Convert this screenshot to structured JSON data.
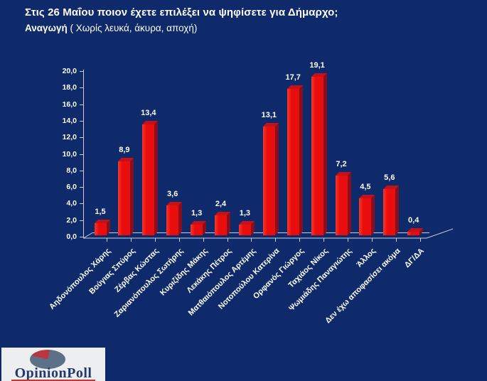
{
  "header": {
    "title": "Στις 26 Μαΐου ποιον έχετε επιλέξει να ψηφίσετε για Δήμαρχο;",
    "subtitle_bold": "Αναγωγή",
    "subtitle_note": " ( Χωρίς λευκά, άκυρα, αποχή)"
  },
  "chart_data": {
    "type": "bar",
    "categories": [
      "Αηδονόπουλος Χάρης",
      "Βούγιας Σπύρος",
      "Ζέρβας Κώστας",
      "Ζαριανόπουλος Σωτήρης",
      "Κυριζίδης Μάκης",
      "Λεκάκης Πέτρος",
      "Ματθαιόπουλος Αρτέμης",
      "Νοτοπούλου Κατερίνα",
      "Ορφανός Γιώργος",
      "Ταχιάος Νίκος",
      "Ψωμιάδης Παναγιώτης",
      "Άλλος",
      "Δεν έχω αποφασίσει ακόμα",
      "ΔΓ/ΔΑ"
    ],
    "values": [
      1.5,
      8.9,
      13.4,
      3.6,
      1.3,
      2.4,
      1.3,
      13.1,
      17.7,
      19.1,
      7.2,
      4.5,
      5.6,
      0.4
    ],
    "value_labels": [
      "1,5",
      "8,9",
      "13,4",
      "3,6",
      "1,3",
      "2,4",
      "1,3",
      "13,1",
      "17,7",
      "19,1",
      "7,2",
      "4,5",
      "5,6",
      "0,4"
    ],
    "y_ticks": [
      "0,0",
      "2,0",
      "4,0",
      "6,0",
      "8,0",
      "10,0",
      "12,0",
      "14,0",
      "16,0",
      "18,0",
      "20,0"
    ],
    "ylim": [
      0,
      20
    ],
    "title": "Στις 26 Μαΐου ποιον έχετε επιλέξει να ψηφίσετε για Δήμαρχο; Αναγωγή (Χωρίς λευκά, άκυρα, αποχή)",
    "xlabel": "",
    "ylabel": "",
    "grid": "off",
    "legend": "none",
    "style": "3d-column",
    "background": "#0f2a6b",
    "bar_color": "#ea0d0e",
    "bar_side_color": "#871020",
    "bar_top_color": "#c2121a",
    "axis_color": "#c9cdd9",
    "label_color": "#ffffff"
  },
  "logo": {
    "text": "OpinionPoll"
  }
}
